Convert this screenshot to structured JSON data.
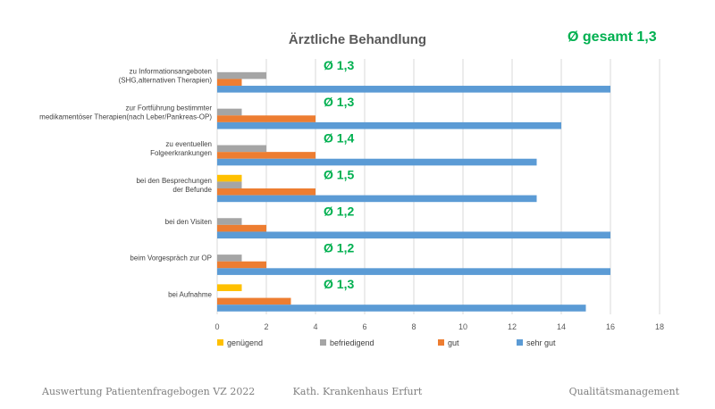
{
  "chart_data": {
    "type": "bar",
    "orientation": "horizontal",
    "title": "Ärztliche Behandlung",
    "overall_label": "Ø gesamt 1,3",
    "categories": [
      [
        "zu Informationsangeboten",
        "(SHG,alternativen Therapien)"
      ],
      [
        "zur Fortführung bestimmter",
        "medikamentöser Therapien(nach Leber/Pankreas-OP)"
      ],
      [
        "zu eventuellen",
        "Folgeerkrankungen"
      ],
      [
        "bei den Besprechungen",
        "der Befunde"
      ],
      [
        "bei den Visiten"
      ],
      [
        "beim Vorgespräch zur OP"
      ],
      [
        "bei Aufnahme"
      ]
    ],
    "averages": [
      "Ø 1,3",
      "Ø 1,3",
      "Ø 1,4",
      "Ø 1,5",
      "Ø 1,2",
      "Ø 1,2",
      "Ø 1,3"
    ],
    "series": [
      {
        "name": "genügend",
        "color": "#ffc000",
        "values": [
          0,
          0,
          0,
          1,
          0,
          0,
          1
        ]
      },
      {
        "name": "befriedigend",
        "color": "#a5a5a5",
        "values": [
          2,
          1,
          2,
          1,
          1,
          1,
          0
        ]
      },
      {
        "name": "gut",
        "color": "#ed7d31",
        "values": [
          1,
          4,
          4,
          4,
          2,
          2,
          3
        ]
      },
      {
        "name": "sehr gut",
        "color": "#5b9bd5",
        "values": [
          16,
          14,
          13,
          13,
          16,
          16,
          15
        ]
      }
    ],
    "xlim": [
      0,
      18
    ],
    "xticks": [
      "0",
      "2",
      "4",
      "6",
      "8",
      "10",
      "12",
      "14",
      "16",
      "18"
    ],
    "grid": true,
    "legend_position": "bottom"
  },
  "footer": {
    "left": "Auswertung Patientenfragebogen VZ 2022",
    "center": "Kath. Krankenhaus Erfurt",
    "right": "Qualitätsmanagement"
  }
}
